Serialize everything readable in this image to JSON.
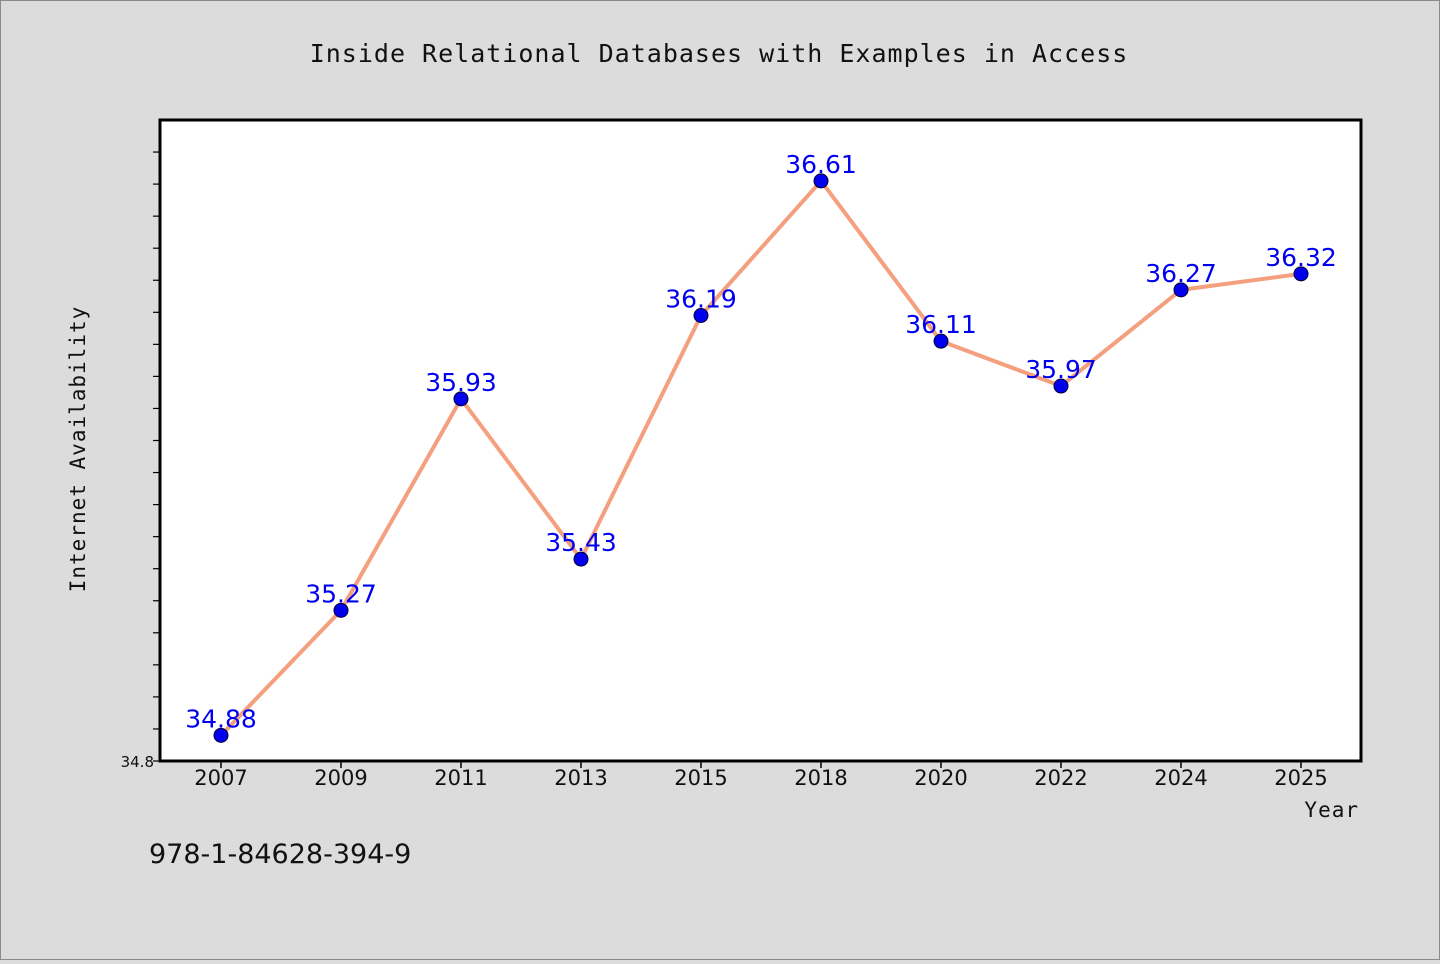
{
  "chart_data": {
    "type": "line",
    "title": "Inside Relational Databases with Examples in Access",
    "xlabel": "Year",
    "ylabel": "Internet Availability",
    "categories": [
      "2007",
      "2009",
      "2011",
      "2013",
      "2015",
      "2018",
      "2020",
      "2022",
      "2024",
      "2025"
    ],
    "series": [
      {
        "values": [
          34.88,
          35.27,
          35.93,
          35.43,
          36.19,
          36.61,
          36.11,
          35.97,
          36.27,
          36.32
        ]
      }
    ],
    "ylim": [
      34.8,
      36.8
    ],
    "y_tick_labels": [
      "34.8"
    ],
    "grid": false,
    "legend": "none",
    "colors": {
      "line": "#f4a07e",
      "marker": "#0000ee",
      "labels": "#0000ee",
      "background": "#dcdcdc",
      "plot_background": "#ffffff"
    }
  },
  "caption": "978-1-84628-394-9"
}
